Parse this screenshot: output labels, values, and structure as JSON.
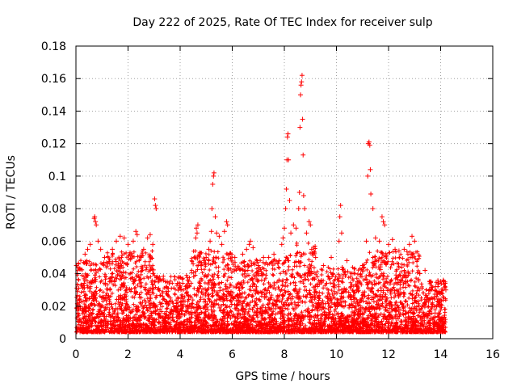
{
  "chart_data": {
    "type": "scatter",
    "title": "Day 222 of 2025, Rate Of TEC Index for receiver sulp",
    "xlabel": "GPS time / hours",
    "ylabel": "ROTI / TECUs",
    "xlim": [
      0,
      16
    ],
    "ylim": [
      0,
      0.18
    ],
    "xticks": [
      "0",
      "2",
      "4",
      "6",
      "8",
      "10",
      "12",
      "14",
      "16"
    ],
    "yticks": [
      "0",
      "0.02",
      "0.04",
      "0.06",
      "0.08",
      "0.1",
      "0.12",
      "0.14",
      "0.16",
      "0.18"
    ],
    "grid": true,
    "marker": "+",
    "color": "#ff0000",
    "series": [
      {
        "name": "ROTI",
        "points": [
          [
            0.02,
            0.045
          ],
          [
            0.05,
            0.04
          ],
          [
            0.1,
            0.046
          ],
          [
            0.2,
            0.033
          ],
          [
            0.35,
            0.052
          ],
          [
            0.45,
            0.055
          ],
          [
            0.55,
            0.058
          ],
          [
            0.7,
            0.074
          ],
          [
            0.72,
            0.075
          ],
          [
            0.75,
            0.072
          ],
          [
            0.78,
            0.07
          ],
          [
            0.85,
            0.06
          ],
          [
            0.95,
            0.055
          ],
          [
            1.1,
            0.05
          ],
          [
            1.3,
            0.046
          ],
          [
            1.4,
            0.055
          ],
          [
            1.55,
            0.06
          ],
          [
            1.7,
            0.063
          ],
          [
            1.85,
            0.062
          ],
          [
            2.0,
            0.058
          ],
          [
            2.2,
            0.06
          ],
          [
            2.3,
            0.066
          ],
          [
            2.35,
            0.064
          ],
          [
            2.5,
            0.05
          ],
          [
            2.6,
            0.055
          ],
          [
            2.75,
            0.062
          ],
          [
            2.85,
            0.064
          ],
          [
            2.95,
            0.058
          ],
          [
            3.02,
            0.086
          ],
          [
            3.05,
            0.082
          ],
          [
            3.08,
            0.08
          ],
          [
            3.5,
            0.035
          ],
          [
            3.9,
            0.034
          ],
          [
            4.3,
            0.036
          ],
          [
            4.5,
            0.046
          ],
          [
            4.55,
            0.05
          ],
          [
            4.6,
            0.062
          ],
          [
            4.62,
            0.068
          ],
          [
            4.65,
            0.065
          ],
          [
            4.68,
            0.07
          ],
          [
            4.8,
            0.045
          ],
          [
            5.0,
            0.05
          ],
          [
            5.1,
            0.055
          ],
          [
            5.15,
            0.06
          ],
          [
            5.2,
            0.066
          ],
          [
            5.22,
            0.08
          ],
          [
            5.25,
            0.095
          ],
          [
            5.28,
            0.1
          ],
          [
            5.3,
            0.102
          ],
          [
            5.35,
            0.075
          ],
          [
            5.4,
            0.065
          ],
          [
            5.5,
            0.063
          ],
          [
            5.6,
            0.058
          ],
          [
            5.7,
            0.066
          ],
          [
            5.78,
            0.072
          ],
          [
            5.82,
            0.07
          ],
          [
            6.1,
            0.05
          ],
          [
            6.4,
            0.052
          ],
          [
            6.55,
            0.055
          ],
          [
            6.65,
            0.058
          ],
          [
            6.7,
            0.06
          ],
          [
            6.8,
            0.056
          ],
          [
            7.0,
            0.045
          ],
          [
            7.2,
            0.05
          ],
          [
            7.4,
            0.05
          ],
          [
            7.6,
            0.052
          ],
          [
            7.8,
            0.048
          ],
          [
            7.9,
            0.058
          ],
          [
            7.95,
            0.062
          ],
          [
            8.0,
            0.068
          ],
          [
            8.05,
            0.08
          ],
          [
            8.08,
            0.092
          ],
          [
            8.1,
            0.11
          ],
          [
            8.12,
            0.124
          ],
          [
            8.14,
            0.126
          ],
          [
            8.16,
            0.11
          ],
          [
            8.2,
            0.085
          ],
          [
            8.25,
            0.065
          ],
          [
            8.35,
            0.07
          ],
          [
            8.45,
            0.068
          ],
          [
            8.55,
            0.08
          ],
          [
            8.58,
            0.09
          ],
          [
            8.6,
            0.13
          ],
          [
            8.62,
            0.15
          ],
          [
            8.64,
            0.156
          ],
          [
            8.66,
            0.158
          ],
          [
            8.68,
            0.162
          ],
          [
            8.7,
            0.135
          ],
          [
            8.72,
            0.113
          ],
          [
            8.74,
            0.088
          ],
          [
            8.78,
            0.08
          ],
          [
            8.85,
            0.065
          ],
          [
            8.95,
            0.072
          ],
          [
            9.0,
            0.07
          ],
          [
            9.05,
            0.055
          ],
          [
            9.2,
            0.05
          ],
          [
            9.5,
            0.045
          ],
          [
            9.8,
            0.05
          ],
          [
            10.1,
            0.06
          ],
          [
            10.13,
            0.075
          ],
          [
            10.16,
            0.082
          ],
          [
            10.2,
            0.065
          ],
          [
            10.4,
            0.048
          ],
          [
            10.6,
            0.04
          ],
          [
            10.8,
            0.035
          ],
          [
            11.0,
            0.045
          ],
          [
            11.15,
            0.06
          ],
          [
            11.2,
            0.1
          ],
          [
            11.22,
            0.12
          ],
          [
            11.25,
            0.121
          ],
          [
            11.28,
            0.119
          ],
          [
            11.3,
            0.104
          ],
          [
            11.32,
            0.089
          ],
          [
            11.4,
            0.08
          ],
          [
            11.5,
            0.062
          ],
          [
            11.65,
            0.06
          ],
          [
            11.75,
            0.075
          ],
          [
            11.8,
            0.072
          ],
          [
            11.85,
            0.07
          ],
          [
            12.0,
            0.058
          ],
          [
            12.15,
            0.061
          ],
          [
            12.25,
            0.055
          ],
          [
            12.4,
            0.054
          ],
          [
            12.6,
            0.055
          ],
          [
            12.8,
            0.058
          ],
          [
            12.9,
            0.063
          ],
          [
            13.0,
            0.06
          ],
          [
            13.2,
            0.04
          ],
          [
            13.4,
            0.042
          ],
          [
            13.6,
            0.035
          ],
          [
            13.8,
            0.032
          ],
          [
            14.0,
            0.035
          ],
          [
            14.1,
            0.036
          ],
          [
            14.2,
            0.03
          ]
        ]
      }
    ]
  }
}
